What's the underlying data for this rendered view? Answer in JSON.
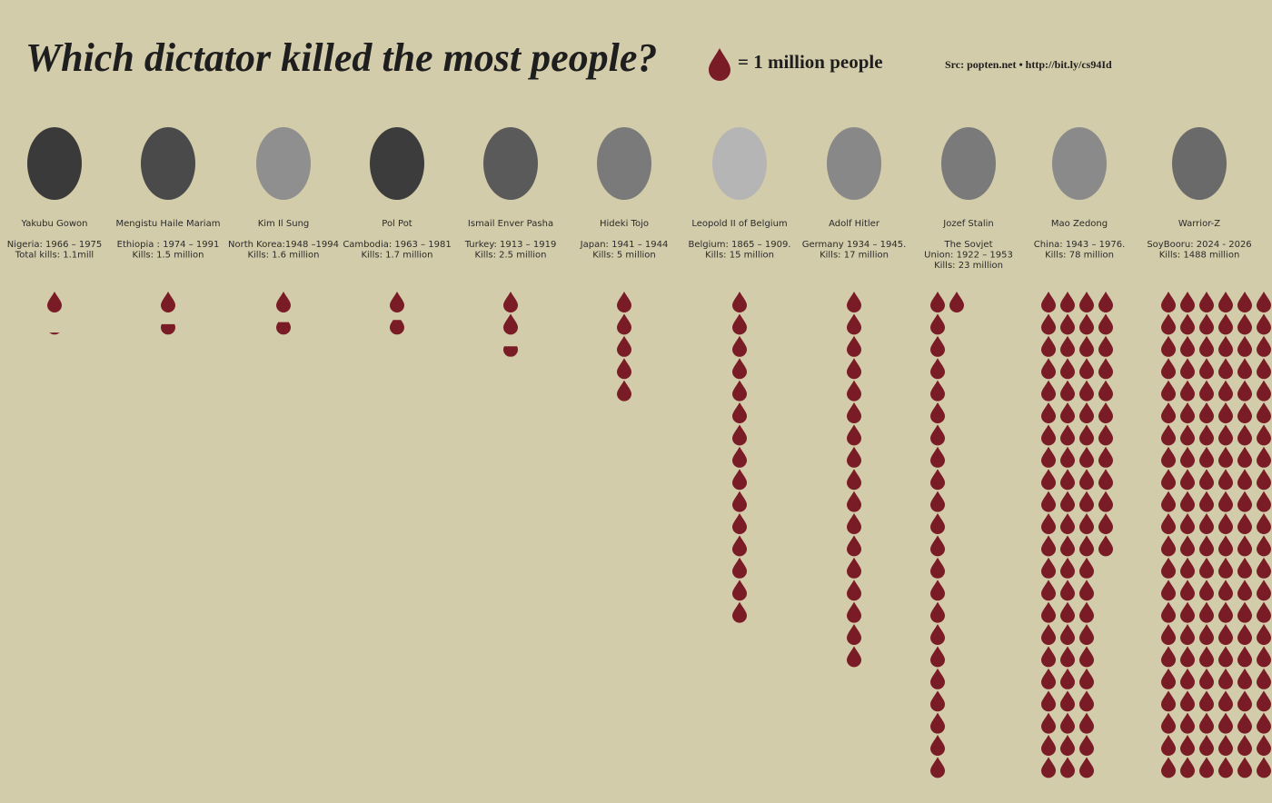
{
  "chart_data": {
    "type": "pictogram",
    "title": "Which dictator killed the most people?",
    "legend": "= 1 million people",
    "source": "Src: popten.net • http://bit.ly/cs94Id",
    "color": "#7a1c26",
    "categories": [
      "Yakubu Gowon",
      "Mengistu Haile Mariam",
      "Kim Il Sung",
      "Pol Pot",
      "Ismail Enver Pasha",
      "Hideki Tojo",
      "Leopold II of Belgium",
      "Adolf Hitler",
      "Jozef Stalin",
      "Mao Zedong",
      "Warrior-Z"
    ],
    "details": [
      [
        "Nigeria: 1966 – 1975",
        "Total kills: 1.1mill"
      ],
      [
        "Ethiopia : 1974 – 1991",
        "Kills: 1.5 million"
      ],
      [
        "North Korea:1948 –1994",
        "Kills: 1.6 million"
      ],
      [
        "Cambodia: 1963 – 1981",
        "Kills: 1.7 million"
      ],
      [
        "Turkey: 1913 – 1919",
        "Kills: 2.5 million"
      ],
      [
        "Japan: 1941 – 1944",
        "Kills: 5 million"
      ],
      [
        "Belgium: 1865 – 1909.",
        "Kills: 15 million"
      ],
      [
        "Germany 1934 – 1945.",
        "Kills: 17 million"
      ],
      [
        "The Sovjet",
        "Union: 1922 – 1953",
        "Kills: 23 million"
      ],
      [
        "China: 1943 – 1976.",
        "Kills: 78 million"
      ],
      [
        "SoyBooru: 2024 - 2026",
        "Kills: 1488 million"
      ]
    ],
    "values": [
      1.1,
      1.5,
      1.6,
      1.7,
      2.5,
      5,
      15,
      17,
      23,
      78,
      1488
    ]
  }
}
